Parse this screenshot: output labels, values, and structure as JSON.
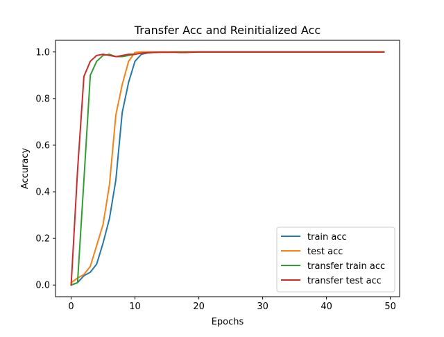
{
  "chart_data": {
    "type": "line",
    "title": "Transfer Acc and Reinitialized Acc",
    "xlabel": "Epochs",
    "ylabel": "Accuracy",
    "xlim": [
      -2.45,
      51.45
    ],
    "ylim": [
      -0.05,
      1.05
    ],
    "xticks": [
      0,
      10,
      20,
      30,
      40,
      50
    ],
    "yticks": [
      0.0,
      0.2,
      0.4,
      0.6,
      0.8,
      1.0
    ],
    "xtick_labels": [
      "0",
      "10",
      "20",
      "30",
      "40",
      "50"
    ],
    "ytick_labels": [
      "0.0",
      "0.2",
      "0.4",
      "0.6",
      "0.8",
      "1.0"
    ],
    "grid": false,
    "legend_position": "lower-right",
    "x": [
      0,
      1,
      2,
      3,
      4,
      5,
      6,
      7,
      8,
      9,
      10,
      11,
      12,
      13,
      14,
      15,
      16,
      17,
      18,
      19,
      20,
      21,
      22,
      23,
      24,
      25,
      26,
      27,
      28,
      29,
      30,
      31,
      32,
      33,
      34,
      35,
      36,
      37,
      38,
      39,
      40,
      41,
      42,
      43,
      44,
      45,
      46,
      47,
      48,
      49
    ],
    "series": [
      {
        "name": "train acc",
        "color": "#1f77b4",
        "values": [
          0.0,
          0.01,
          0.04,
          0.055,
          0.09,
          0.18,
          0.285,
          0.45,
          0.74,
          0.87,
          0.96,
          0.99,
          0.996,
          0.998,
          0.999,
          0.999,
          0.999,
          0.999,
          1.0,
          1.0,
          1.0,
          1.0,
          1.0,
          1.0,
          1.0,
          1.0,
          1.0,
          1.0,
          1.0,
          1.0,
          1.0,
          1.0,
          1.0,
          1.0,
          1.0,
          1.0,
          1.0,
          1.0,
          1.0,
          1.0,
          1.0,
          1.0,
          1.0,
          1.0,
          1.0,
          1.0,
          1.0,
          1.0,
          1.0,
          1.0
        ]
      },
      {
        "name": "test acc",
        "color": "#ff7f0e",
        "values": [
          0.01,
          0.03,
          0.045,
          0.08,
          0.17,
          0.26,
          0.43,
          0.73,
          0.86,
          0.96,
          0.998,
          1.0,
          1.0,
          1.0,
          1.0,
          1.0,
          1.0,
          1.0,
          1.0,
          1.0,
          1.0,
          1.0,
          1.0,
          1.0,
          1.0,
          1.0,
          1.0,
          1.0,
          1.0,
          1.0,
          1.0,
          1.0,
          1.0,
          1.0,
          1.0,
          1.0,
          1.0,
          1.0,
          1.0,
          1.0,
          1.0,
          1.0,
          1.0,
          1.0,
          1.0,
          1.0,
          1.0,
          1.0,
          1.0,
          1.0
        ]
      },
      {
        "name": "transfer train acc",
        "color": "#2ca02c",
        "values": [
          0.0,
          0.01,
          0.45,
          0.9,
          0.96,
          0.985,
          0.99,
          0.98,
          0.98,
          0.985,
          0.99,
          0.995,
          0.997,
          0.999,
          0.999,
          0.999,
          1.0,
          1.0,
          1.0,
          1.0,
          1.0,
          1.0,
          1.0,
          1.0,
          1.0,
          1.0,
          1.0,
          1.0,
          1.0,
          1.0,
          1.0,
          1.0,
          1.0,
          1.0,
          1.0,
          1.0,
          1.0,
          1.0,
          1.0,
          1.0,
          1.0,
          1.0,
          1.0,
          1.0,
          1.0,
          1.0,
          1.0,
          1.0,
          1.0,
          1.0
        ]
      },
      {
        "name": "transfer test acc",
        "color": "#d62728",
        "values": [
          0.0,
          0.49,
          0.895,
          0.96,
          0.985,
          0.99,
          0.985,
          0.98,
          0.985,
          0.99,
          0.99,
          0.995,
          0.997,
          0.998,
          0.999,
          0.999,
          0.999,
          0.998,
          0.998,
          0.999,
          1.0,
          1.0,
          1.0,
          1.0,
          1.0,
          1.0,
          1.0,
          1.0,
          1.0,
          1.0,
          1.0,
          1.0,
          1.0,
          1.0,
          1.0,
          1.0,
          1.0,
          1.0,
          1.0,
          1.0,
          1.0,
          1.0,
          1.0,
          1.0,
          1.0,
          1.0,
          1.0,
          1.0,
          1.0,
          1.0
        ]
      }
    ]
  }
}
